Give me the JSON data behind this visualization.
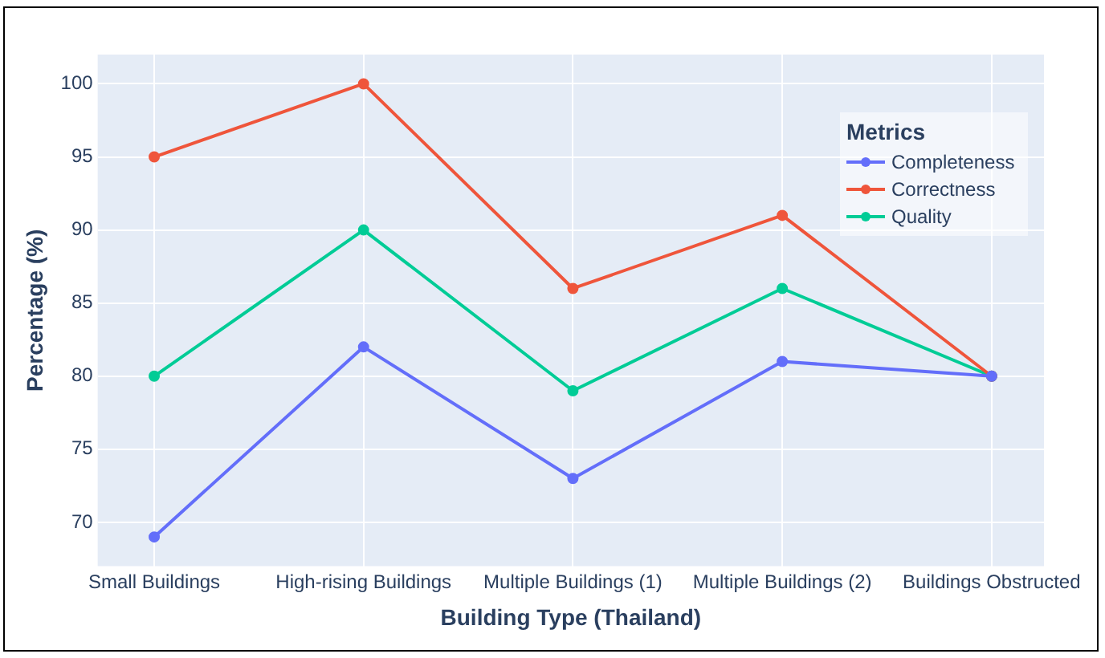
{
  "chart_data": {
    "type": "line",
    "xlabel": "Building Type (Thailand)",
    "ylabel": "Percentage (%)",
    "legend_title": "Metrics",
    "categories": [
      "Small Buildings",
      "High-rising Buildings",
      "Multiple Buildings (1)",
      "Multiple Buildings (2)",
      "Buildings Obstructed"
    ],
    "series": [
      {
        "name": "Completeness",
        "color": "#636efa",
        "values": [
          69,
          82,
          73,
          81,
          80
        ]
      },
      {
        "name": "Correctness",
        "color": "#ef553b",
        "values": [
          95,
          100,
          86,
          91,
          80
        ]
      },
      {
        "name": "Quality",
        "color": "#00cc96",
        "values": [
          80,
          90,
          79,
          86,
          80
        ]
      }
    ],
    "ylim": [
      67,
      102
    ],
    "yticks": [
      70,
      75,
      80,
      85,
      90,
      95,
      100
    ],
    "grid": true,
    "legend": "top right",
    "marker": "circle"
  }
}
